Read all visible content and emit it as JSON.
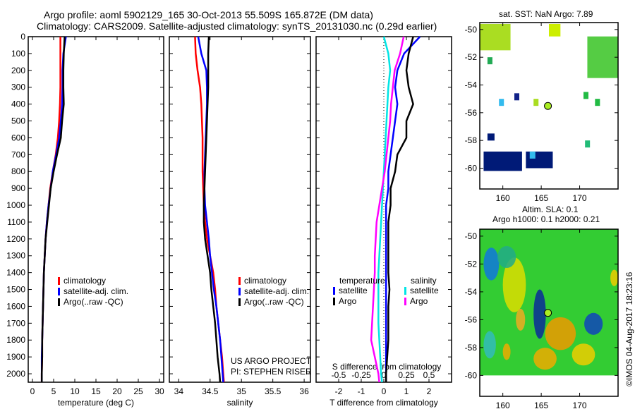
{
  "title_line1": "Argo profile: aoml 5902129_165 30-Oct-2013 55.509S 165.872E (DM data)",
  "title_line2": "Climatology: CARS2009. Satellite-adjusted climatology: synTS_20131030.nc (0.29d earlier)",
  "copyright": "©IMOS 04-Aug-2017 18:23:16",
  "colors": {
    "climatology": "#ff0000",
    "satellite": "#0000ff",
    "argo": "#000000",
    "sal_satellite": "#00e5e5",
    "sal_argo": "#ff00ff"
  },
  "chart_data": [
    {
      "type": "line",
      "id": "temperature",
      "xlabel": "temperature (deg C)",
      "ylabel": "",
      "xlim": [
        -1,
        31
      ],
      "ylim": [
        2050,
        0
      ],
      "xticks": [
        "0",
        "5",
        "10",
        "15",
        "20",
        "25",
        "30"
      ],
      "xtick_values": [
        0,
        5,
        10,
        15,
        20,
        25,
        30
      ],
      "yticks": [
        "0",
        "100",
        "200",
        "300",
        "400",
        "500",
        "600",
        "700",
        "800",
        "900",
        "1000",
        "1100",
        "1200",
        "1300",
        "1400",
        "1500",
        "1600",
        "1700",
        "1800",
        "1900",
        "2000"
      ],
      "depth": [
        0,
        100,
        200,
        300,
        400,
        500,
        600,
        700,
        800,
        900,
        1000,
        1100,
        1200,
        1300,
        1400,
        1500,
        1600,
        1700,
        1800,
        1900,
        2000,
        2050
      ],
      "legend": [
        "climatology",
        "satellite-adj. clim.",
        "Argo(..raw -QC)"
      ],
      "series": [
        {
          "name": "climatology",
          "values": [
            6.6,
            6.6,
            6.6,
            6.6,
            6.5,
            6.3,
            6.0,
            5.5,
            4.8,
            4.2,
            3.8,
            3.4,
            3.1,
            2.9,
            2.7,
            2.6,
            2.5,
            2.4,
            2.3,
            2.3,
            2.2,
            2.2
          ]
        },
        {
          "name": "satellite-adj. clim.",
          "values": [
            7.9,
            7.3,
            7.1,
            7.1,
            7.0,
            6.7,
            6.3,
            5.6,
            4.8,
            4.3,
            3.8,
            3.4,
            3.1,
            2.9,
            2.7,
            2.6,
            2.5,
            2.4,
            2.3,
            2.2,
            2.2,
            2.2
          ]
        },
        {
          "name": "Argo(..raw -QC)",
          "values": [
            7.6,
            7.4,
            7.3,
            7.3,
            7.4,
            7.0,
            6.7,
            5.8,
            5.0,
            4.3,
            3.9,
            3.5,
            3.1,
            2.9,
            2.7,
            2.6,
            2.5,
            2.4,
            2.3,
            2.3,
            2.2,
            2.2
          ]
        }
      ]
    },
    {
      "type": "line",
      "id": "salinity",
      "xlabel": "salinity",
      "xlim": [
        33.85,
        36.1
      ],
      "ylim": [
        2050,
        0
      ],
      "xticks": [
        "34",
        "34.5",
        "35",
        "35.5",
        "36"
      ],
      "xtick_values": [
        34,
        34.5,
        35,
        35.5,
        36
      ],
      "legend": [
        "climatology",
        "satellite-adj. clim.",
        "Argo(..raw -QC)"
      ],
      "annotation": [
        "US ARGO PROJECT",
        "PI: STEPHEN RISER"
      ],
      "series": [
        {
          "name": "climatology",
          "values": [
            34.26,
            34.27,
            34.3,
            34.34,
            34.36,
            34.37,
            34.38,
            34.38,
            34.38,
            34.39,
            34.4,
            34.42,
            34.45,
            34.5,
            34.55,
            34.58,
            34.6,
            34.63,
            34.66,
            34.69,
            34.71,
            34.72
          ]
        },
        {
          "name": "satellite-adj. clim.",
          "values": [
            34.31,
            34.36,
            34.44,
            34.45,
            34.45,
            34.44,
            34.43,
            34.42,
            34.41,
            34.41,
            34.42,
            34.45,
            34.48,
            34.5,
            34.53,
            34.56,
            34.6,
            34.63,
            34.66,
            34.68,
            34.7,
            34.71
          ]
        },
        {
          "name": "Argo(..raw -QC)",
          "values": [
            34.48,
            34.47,
            34.47,
            34.47,
            34.46,
            34.45,
            34.44,
            34.43,
            34.42,
            34.41,
            34.4,
            34.4,
            34.42,
            34.46,
            34.5,
            34.52,
            34.55,
            34.58,
            34.6,
            34.62,
            34.65,
            34.66
          ]
        }
      ]
    },
    {
      "type": "line",
      "id": "difference",
      "xlabel": "T difference from climatology",
      "x2label": "S difference from climatology",
      "xlim": [
        -3,
        3
      ],
      "ylim": [
        2050,
        0
      ],
      "xticks": [
        "-2",
        "-1",
        "0",
        "1",
        "2"
      ],
      "xtick_values": [
        -2,
        -1,
        0,
        1,
        2
      ],
      "x2ticks": [
        "-0.5",
        "-0.25",
        "0",
        "0.25",
        "0.5"
      ],
      "x2tick_values": [
        -0.5,
        -0.25,
        0,
        0.25,
        0.5
      ],
      "legend_temperature": {
        "title": "temperature",
        "items": [
          "satellite",
          "Argo"
        ]
      },
      "legend_salinity": {
        "title": "salinity",
        "items": [
          "satellite",
          "Argo"
        ]
      },
      "series": [
        {
          "name": "T satellite",
          "values": [
            1.6,
            0.9,
            0.6,
            0.5,
            0.6,
            0.5,
            0.4,
            0.3,
            0.2,
            0.2,
            0.1,
            0.1,
            0.1,
            0.1,
            0.1,
            0.1,
            0.1,
            0.1,
            0.1,
            0.1,
            0.1,
            0.1
          ]
        },
        {
          "name": "T Argo",
          "values": [
            1.3,
            1.1,
            1.0,
            1.1,
            1.3,
            1.0,
            1.0,
            0.6,
            0.5,
            0.3,
            0.3,
            0.2,
            0.2,
            0.2,
            0.2,
            0.25,
            0.2,
            0.2,
            0.2,
            0.15,
            0.1,
            0.1
          ]
        },
        {
          "name": "S satellite",
          "values": [
            0.0,
            0.05,
            0.07,
            0.05,
            0.04,
            0.03,
            0.02,
            0.01,
            0.0,
            -0.01,
            -0.02,
            -0.03,
            -0.04,
            -0.05,
            -0.06,
            -0.06,
            -0.06,
            -0.06,
            -0.05,
            -0.04,
            -0.03,
            -0.02
          ]
        },
        {
          "name": "S Argo",
          "values": [
            0.22,
            0.18,
            0.12,
            0.1,
            0.08,
            0.07,
            0.05,
            0.03,
            0.01,
            -0.02,
            -0.05,
            -0.08,
            -0.09,
            -0.1,
            -0.1,
            -0.11,
            -0.12,
            -0.13,
            -0.14,
            -0.1,
            -0.06,
            -0.05
          ]
        }
      ]
    },
    {
      "type": "heatmap",
      "id": "sst_map",
      "title": "sat. SST: NaN Argo: 7.89",
      "xlim": [
        157,
        175
      ],
      "ylim": [
        -61.5,
        -49.5
      ],
      "xticks": [
        "160",
        "165",
        "170"
      ],
      "yticks": [
        "-50",
        "-52",
        "-54",
        "-56",
        "-58",
        "-60"
      ],
      "marker": {
        "lon": 165.87,
        "lat": -55.51
      }
    },
    {
      "type": "heatmap",
      "id": "sla_map",
      "title": "Altim. SLA: 0.1",
      "subtitle": "Argo h1000: 0.1 h2000: 0.21",
      "xlim": [
        157,
        175
      ],
      "ylim": [
        -61.5,
        -49.5
      ],
      "xticks": [
        "160",
        "165",
        "170"
      ],
      "yticks": [
        "-50",
        "-52",
        "-54",
        "-56",
        "-58",
        "-60"
      ],
      "marker": {
        "lon": 165.87,
        "lat": -55.51
      }
    }
  ]
}
